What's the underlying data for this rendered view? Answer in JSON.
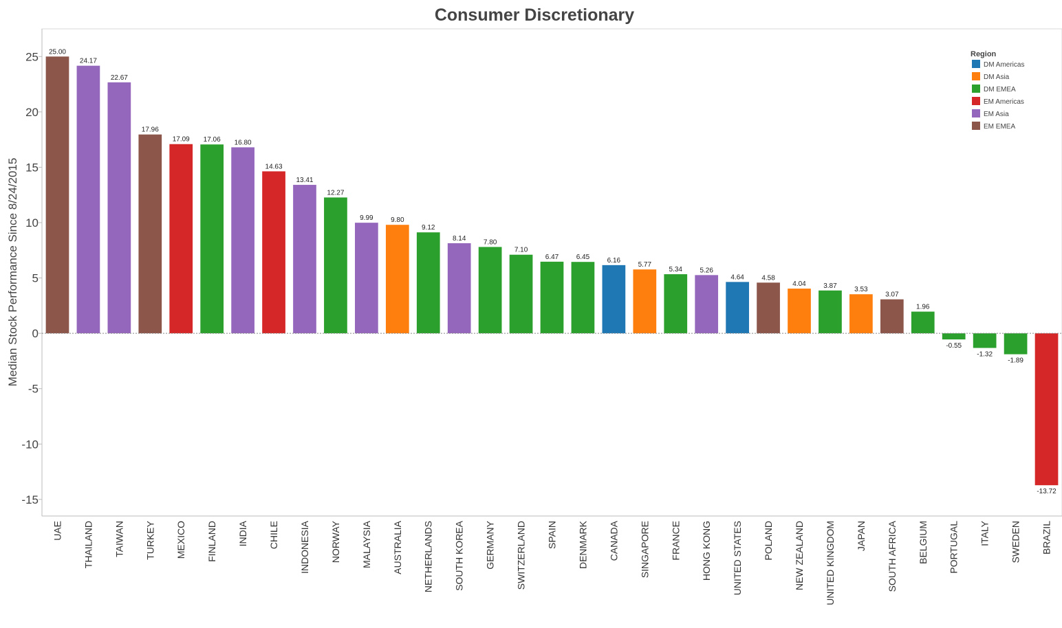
{
  "chart_data": {
    "type": "bar",
    "title": "Consumer Discretionary",
    "ylabel": "Median Stock Performance Since 8/24/2015",
    "xlabel": "",
    "ylim": [
      -16.5,
      27.5
    ],
    "yticks": [
      25,
      20,
      15,
      10,
      5,
      0,
      -5,
      -10,
      -15
    ],
    "grid": false,
    "legend_position": "top-right",
    "legend": {
      "title": "Region",
      "entries": [
        {
          "name": "DM Americas",
          "color": "#1f77b4"
        },
        {
          "name": "DM Asia",
          "color": "#ff7f0e"
        },
        {
          "name": "DM EMEA",
          "color": "#2ca02c"
        },
        {
          "name": "EM Americas",
          "color": "#d62728"
        },
        {
          "name": "EM Asia",
          "color": "#9467bd"
        },
        {
          "name": "EM EMEA",
          "color": "#8c564b"
        }
      ]
    },
    "categories": [
      "UAE",
      "THAILAND",
      "TAIWAN",
      "TURKEY",
      "MEXICO",
      "FINLAND",
      "INDIA",
      "CHILE",
      "INDONESIA",
      "NORWAY",
      "MALAYSIA",
      "AUSTRALIA",
      "NETHERLANDS",
      "SOUTH KOREA",
      "GERMANY",
      "SWITZERLAND",
      "SPAIN",
      "DENMARK",
      "CANADA",
      "SINGAPORE",
      "FRANCE",
      "HONG KONG",
      "UNITED STATES",
      "POLAND",
      "NEW ZEALAND",
      "UNITED KINGDOM",
      "JAPAN",
      "SOUTH AFRICA",
      "BELGIUM",
      "PORTUGAL",
      "ITALY",
      "SWEDEN",
      "BRAZIL"
    ],
    "values": [
      25.0,
      24.17,
      22.67,
      17.96,
      17.09,
      17.06,
      16.8,
      14.63,
      13.41,
      12.27,
      9.99,
      9.8,
      9.12,
      8.14,
      7.8,
      7.1,
      6.47,
      6.45,
      6.16,
      5.77,
      5.34,
      5.26,
      4.64,
      4.58,
      4.04,
      3.87,
      3.53,
      3.07,
      1.96,
      -0.55,
      -1.32,
      -1.89,
      -13.72
    ],
    "value_labels": [
      "25.00",
      "24.17",
      "22.67",
      "17.96",
      "17.09",
      "17.06",
      "16.80",
      "14.63",
      "13.41",
      "12.27",
      "9.99",
      "9.80",
      "9.12",
      "8.14",
      "7.80",
      "7.10",
      "6.47",
      "6.45",
      "6.16",
      "5.77",
      "5.34",
      "5.26",
      "4.64",
      "4.58",
      "4.04",
      "3.87",
      "3.53",
      "3.07",
      "1.96",
      "-0.55",
      "-1.32",
      "-1.89",
      "-13.72"
    ],
    "regions": [
      "EM EMEA",
      "EM Asia",
      "EM Asia",
      "EM EMEA",
      "EM Americas",
      "DM EMEA",
      "EM Asia",
      "EM Americas",
      "EM Asia",
      "DM EMEA",
      "EM Asia",
      "DM Asia",
      "DM EMEA",
      "EM Asia",
      "DM EMEA",
      "DM EMEA",
      "DM EMEA",
      "DM EMEA",
      "DM Americas",
      "DM Asia",
      "DM EMEA",
      "EM Asia",
      "DM Americas",
      "EM EMEA",
      "DM Asia",
      "DM EMEA",
      "DM Asia",
      "EM EMEA",
      "DM EMEA",
      "DM EMEA",
      "DM EMEA",
      "DM EMEA",
      "EM Americas"
    ]
  }
}
